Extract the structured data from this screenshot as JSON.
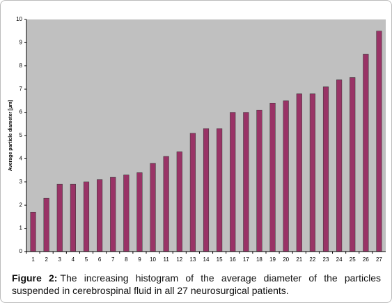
{
  "chart_data": {
    "type": "bar",
    "y_label": "Average particle diameter [µm]",
    "categories": [
      "1",
      "2",
      "3",
      "4",
      "5",
      "6",
      "7",
      "8",
      "9",
      "10",
      "11",
      "12",
      "13",
      "14",
      "15",
      "16",
      "17",
      "18",
      "19",
      "20",
      "21",
      "22",
      "23",
      "24",
      "25",
      "26",
      "27"
    ],
    "values": [
      1.7,
      2.3,
      2.9,
      2.9,
      3.0,
      3.1,
      3.2,
      3.3,
      3.4,
      3.8,
      4.1,
      4.3,
      5.1,
      5.3,
      5.3,
      6.0,
      6.0,
      6.1,
      6.4,
      6.5,
      6.8,
      6.8,
      7.1,
      7.4,
      7.5,
      8.5,
      9.5
    ],
    "color": "#993366",
    "ylim": [
      0,
      10
    ],
    "yticks": [
      0,
      1,
      2,
      3,
      4,
      5,
      6,
      7,
      8,
      9,
      10
    ],
    "grid": false
  },
  "caption": {
    "label": "Figure 2:",
    "text": "The increasing histogram of the average diameter of the particles suspended in cerebrospinal fluid in all 27 neurosurgical patients."
  }
}
